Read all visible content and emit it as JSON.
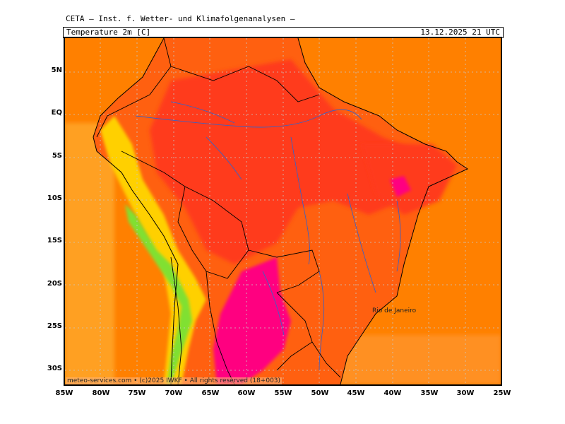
{
  "header": {
    "institute": "CETA – Inst. f. Wetter- und Klimafolgenanalysen –",
    "parameter": "Temperature 2m [C]",
    "valid_time": "13.12.2025 21 UTC"
  },
  "map": {
    "region": "South America",
    "latitude_labels": [
      "5N",
      "EQ",
      "5S",
      "10S",
      "15S",
      "20S",
      "25S",
      "30S"
    ],
    "longitude_labels": [
      "85W",
      "80W",
      "75W",
      "70W",
      "65W",
      "60W",
      "55W",
      "50W",
      "45W",
      "40W",
      "35W",
      "30W",
      "25W"
    ],
    "city_label": "Rio de Janeiro",
    "footer": "meteo-services.com • (c)2025 IWKF • All rights reserved (18+003)",
    "colors": {
      "ocean": "#ff8000",
      "ocean_cool": "#ffa020",
      "land_hot": "#ff3a1a",
      "land_very_hot": "#ff0080",
      "land_warm": "#ff6010",
      "andes_cool": "#ffd000",
      "andes_cold": "#80e030",
      "borders": "#000000",
      "rivers": "#4060c0"
    }
  }
}
